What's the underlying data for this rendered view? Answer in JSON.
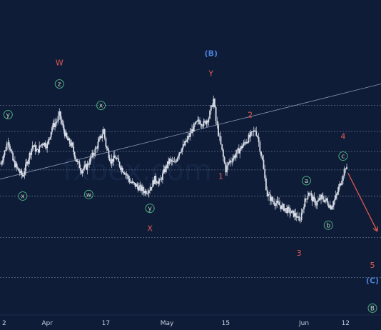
{
  "chart_data": {
    "type": "candlestick",
    "title": "",
    "xlabel": "",
    "ylabel": "",
    "watermark": "fxbex.com",
    "x_ticks": [
      {
        "label": "2",
        "day": 0
      },
      {
        "label": "Apr",
        "day": 19
      },
      {
        "label": "17",
        "day": 43
      },
      {
        "label": "May",
        "day": 68
      },
      {
        "label": "15",
        "day": 92
      },
      {
        "label": "Jun",
        "day": 124
      },
      {
        "label": "12",
        "day": 141
      }
    ],
    "x_range_days": [
      -0.3,
      155.5
    ],
    "y_range": [
      0,
      100
    ],
    "horizontal_levels": [
      68,
      59.5,
      53,
      47,
      38.5,
      25,
      12
    ],
    "trendline": {
      "from": {
        "day": -0.3,
        "y": 44
      },
      "to": {
        "day": 155.5,
        "y": 75
      }
    },
    "price_path": [
      [
        0,
        49
      ],
      [
        2,
        54
      ],
      [
        3,
        57
      ],
      [
        5,
        50
      ],
      [
        7,
        47
      ],
      [
        9,
        45
      ],
      [
        11,
        50
      ],
      [
        13,
        55
      ],
      [
        15,
        53
      ],
      [
        17,
        56
      ],
      [
        19,
        55
      ],
      [
        21,
        61
      ],
      [
        23,
        63
      ],
      [
        24,
        65
      ],
      [
        25,
        62
      ],
      [
        27,
        57
      ],
      [
        29,
        55
      ],
      [
        31,
        50
      ],
      [
        33,
        47
      ],
      [
        35,
        48
      ],
      [
        37,
        51
      ],
      [
        39,
        54
      ],
      [
        41,
        58
      ],
      [
        42,
        60
      ],
      [
        43,
        55
      ],
      [
        45,
        50
      ],
      [
        47,
        51
      ],
      [
        49,
        48
      ],
      [
        51,
        46
      ],
      [
        53,
        43
      ],
      [
        55,
        42
      ],
      [
        57,
        41
      ],
      [
        59,
        40
      ],
      [
        61,
        41
      ],
      [
        63,
        44
      ],
      [
        65,
        43
      ],
      [
        67,
        47
      ],
      [
        69,
        50
      ],
      [
        71,
        49
      ],
      [
        73,
        53
      ],
      [
        75,
        55
      ],
      [
        77,
        58
      ],
      [
        79,
        61
      ],
      [
        81,
        63
      ],
      [
        83,
        62
      ],
      [
        85,
        64
      ],
      [
        86,
        67
      ],
      [
        87,
        70
      ],
      [
        88,
        63
      ],
      [
        89,
        59
      ],
      [
        90,
        55
      ],
      [
        91,
        51
      ],
      [
        92,
        47
      ],
      [
        93,
        49
      ],
      [
        95,
        51
      ],
      [
        97,
        53
      ],
      [
        99,
        55
      ],
      [
        101,
        57
      ],
      [
        103,
        59
      ],
      [
        104,
        60
      ],
      [
        105,
        58
      ],
      [
        106,
        54
      ],
      [
        107,
        50
      ],
      [
        108,
        44
      ],
      [
        109,
        39
      ],
      [
        111,
        37
      ],
      [
        113,
        36
      ],
      [
        115,
        35
      ],
      [
        117,
        34
      ],
      [
        119,
        33
      ],
      [
        121,
        32
      ],
      [
        122,
        30
      ],
      [
        123,
        33
      ],
      [
        124,
        36
      ],
      [
        126,
        40
      ],
      [
        127,
        38
      ],
      [
        129,
        36
      ],
      [
        131,
        38
      ],
      [
        133,
        37
      ],
      [
        135,
        35
      ],
      [
        137,
        38
      ],
      [
        139,
        43
      ],
      [
        140,
        46
      ],
      [
        141,
        48
      ],
      [
        142,
        46
      ]
    ],
    "arrow": {
      "from": {
        "day": 142,
        "y": 46
      },
      "to": {
        "day": 154,
        "y": 27
      }
    },
    "wave_labels": [
      {
        "text": "W",
        "day": 24,
        "y": 82,
        "color": "#e05a52",
        "style": "plain"
      },
      {
        "text": "z",
        "day": 24,
        "y": 75,
        "color": "#4caf7d",
        "style": "circle"
      },
      {
        "text": "y",
        "day": 3,
        "y": 65,
        "color": "#4caf7d",
        "style": "circle"
      },
      {
        "text": "x",
        "day": 9,
        "y": 38.5,
        "color": "#4caf7d",
        "style": "circle"
      },
      {
        "text": "w",
        "day": 36,
        "y": 39,
        "color": "#4caf7d",
        "style": "circle"
      },
      {
        "text": "x",
        "day": 41,
        "y": 68,
        "color": "#4caf7d",
        "style": "circle"
      },
      {
        "text": "y",
        "day": 61,
        "y": 34.5,
        "color": "#4caf7d",
        "style": "circle"
      },
      {
        "text": "X",
        "day": 61,
        "y": 28,
        "color": "#e05a52",
        "style": "plain"
      },
      {
        "text": "(B)",
        "day": 86,
        "y": 85,
        "color": "#4a7fd6",
        "style": "plain"
      },
      {
        "text": "Y",
        "day": 86,
        "y": 78.5,
        "color": "#e05a52",
        "style": "plain"
      },
      {
        "text": "1",
        "day": 90,
        "y": 45,
        "color": "#e05a52",
        "style": "plain"
      },
      {
        "text": "2",
        "day": 102,
        "y": 65,
        "color": "#e05a52",
        "style": "plain"
      },
      {
        "text": "a",
        "day": 125,
        "y": 43.5,
        "color": "#4caf7d",
        "style": "circle"
      },
      {
        "text": "b",
        "day": 134,
        "y": 29,
        "color": "#4caf7d",
        "style": "circle"
      },
      {
        "text": "3",
        "day": 122,
        "y": 20,
        "color": "#e05a52",
        "style": "plain"
      },
      {
        "text": "4",
        "day": 140,
        "y": 58,
        "color": "#e05a52",
        "style": "plain"
      },
      {
        "text": "c",
        "day": 140,
        "y": 51.5,
        "color": "#4caf7d",
        "style": "circle"
      },
      {
        "text": "5",
        "day": 152,
        "y": 16,
        "color": "#e05a52",
        "style": "plain"
      },
      {
        "text": "(C)",
        "day": 152,
        "y": 11,
        "color": "#4a7fd6",
        "style": "plain"
      },
      {
        "text": "B",
        "day": 152,
        "y": 2,
        "color": "#4caf7d",
        "style": "circle"
      }
    ],
    "grid": false,
    "legend": "none"
  },
  "colors": {
    "background": "#0e1c37",
    "candles": "#d8dde8",
    "level_lines": "#5d6b8a",
    "trendline": "#8a97b4",
    "arrow": "#e05a52"
  }
}
